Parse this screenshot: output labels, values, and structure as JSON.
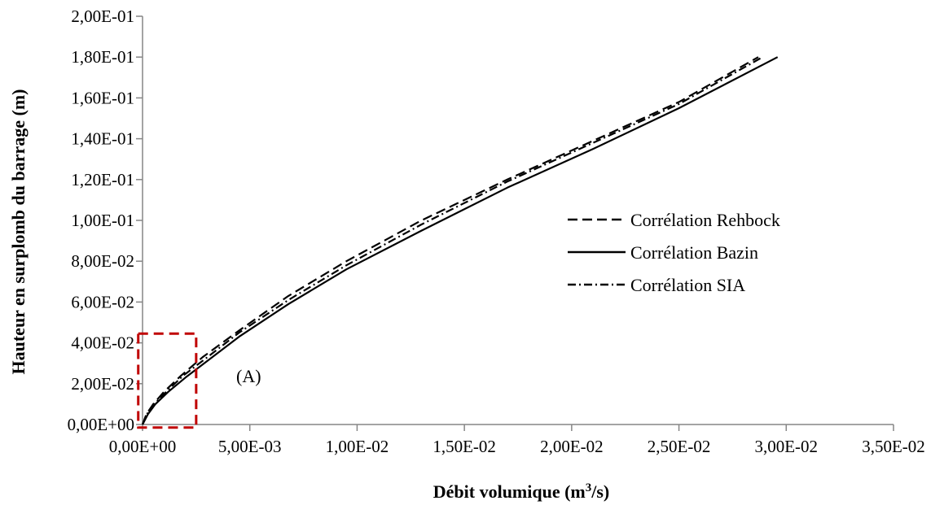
{
  "chart_data": {
    "type": "line",
    "xlabel": "Débit volumique (m",
    "xlabel_sup": "3",
    "xlabel_tail": "/s)",
    "ylabel": "Hauteur en surplomb du barrage (m)",
    "xlim": [
      0,
      0.035
    ],
    "ylim": [
      0,
      0.2
    ],
    "xticks": [
      0,
      0.005,
      0.01,
      0.015,
      0.02,
      0.025,
      0.03,
      0.035
    ],
    "xtick_labels": [
      "0,00E+00",
      "5,00E-03",
      "1,00E-02",
      "1,50E-02",
      "2,00E-02",
      "2,50E-02",
      "3,00E-02",
      "3,50E-02"
    ],
    "yticks": [
      0,
      0.02,
      0.04,
      0.06,
      0.08,
      0.1,
      0.12,
      0.14,
      0.16,
      0.18,
      0.2
    ],
    "ytick_labels": [
      "0,00E+00",
      "2,00E-02",
      "4,00E-02",
      "6,00E-02",
      "8,00E-02",
      "1,00E-01",
      "1,20E-01",
      "1,40E-01",
      "1,60E-01",
      "1,80E-01",
      "2,00E-01"
    ],
    "grid": false,
    "legend_position": "right",
    "series": [
      {
        "name": "Corrélation Rehbock",
        "style": "dashed",
        "color": "#000000",
        "x": [
          0,
          0.00018,
          0.0005,
          0.001,
          0.0018,
          0.0028,
          0.0045,
          0.0068,
          0.0095,
          0.013,
          0.017,
          0.021,
          0.025,
          0.0287
        ],
        "y": [
          0,
          0.005,
          0.01,
          0.016,
          0.024,
          0.033,
          0.046,
          0.063,
          0.08,
          0.1,
          0.12,
          0.139,
          0.158,
          0.18
        ]
      },
      {
        "name": "Corrélation Bazin",
        "style": "solid",
        "color": "#000000",
        "x": [
          0,
          0.00025,
          0.0006,
          0.0012,
          0.002,
          0.003,
          0.0045,
          0.0068,
          0.0095,
          0.013,
          0.017,
          0.021,
          0.025,
          0.0296
        ],
        "y": [
          0,
          0.005,
          0.01,
          0.016,
          0.023,
          0.031,
          0.043,
          0.059,
          0.076,
          0.095,
          0.116,
          0.135,
          0.155,
          0.18
        ]
      },
      {
        "name": "Corrélation SIA",
        "style": "dashdot",
        "color": "#000000",
        "x": [
          0,
          0.0002,
          0.00055,
          0.0011,
          0.0019,
          0.0029,
          0.0045,
          0.0068,
          0.0095,
          0.013,
          0.017,
          0.021,
          0.025,
          0.0289
        ],
        "y": [
          0,
          0.005,
          0.01,
          0.016,
          0.024,
          0.032,
          0.045,
          0.061,
          0.078,
          0.098,
          0.119,
          0.138,
          0.157,
          0.18
        ]
      }
    ],
    "annotation": {
      "label": "(A)",
      "box_color": "#c00000",
      "box_x": [
        -0.0002,
        0.0025
      ],
      "box_y": [
        -0.0015,
        0.0445
      ]
    }
  }
}
